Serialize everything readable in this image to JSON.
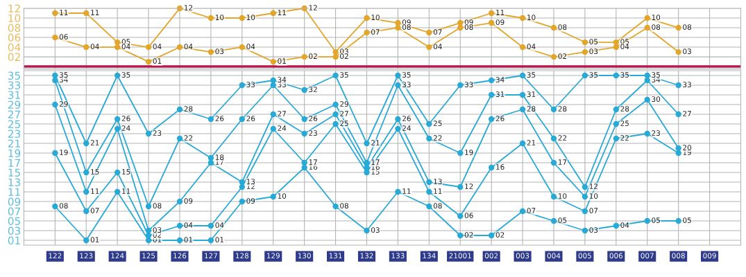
{
  "chart_data": [
    {
      "type": "line",
      "categories": [
        "122",
        "123",
        "124",
        "125",
        "126",
        "127",
        "128",
        "129",
        "130",
        "131",
        "132",
        "133",
        "134",
        "21001",
        "002",
        "003",
        "004",
        "005",
        "006",
        "007",
        "008",
        "009"
      ],
      "tick_labels": "y",
      "ylim": [
        -0.5,
        12
      ],
      "yticks": [
        {
          "value": 2,
          "label": "02"
        },
        {
          "value": 4,
          "label": "04"
        },
        {
          "value": 6,
          "label": "06"
        },
        {
          "value": 8,
          "label": "08"
        },
        10,
        12
      ],
      "grid": true,
      "marker": "circle",
      "line_style": "solid",
      "ref_lines": [
        {
          "axis": "y",
          "value": 0,
          "color": "#b5194c"
        }
      ],
      "series": [
        {
          "color": "#e2a62c",
          "values": [
            11,
            11,
            5,
            4,
            12,
            10,
            10,
            11,
            12,
            3,
            10,
            9,
            7,
            9,
            11,
            10,
            8,
            5,
            5,
            10,
            8,
            null
          ],
          "value_labels": [
            "11",
            "11",
            "05",
            "04",
            "12",
            "10",
            "10",
            "11",
            "12",
            "03",
            "10",
            "09",
            "07",
            "09",
            "11",
            "10",
            "08",
            "05",
            "05",
            "10",
            "08",
            null
          ]
        },
        {
          "color": "#e2a62c",
          "values": [
            6,
            4,
            4,
            1,
            4,
            3,
            4,
            1,
            2,
            2,
            7,
            8,
            4,
            8,
            9,
            4,
            2,
            3,
            4,
            8,
            3,
            null
          ],
          "value_labels": [
            "06",
            "04",
            "04",
            "01",
            "04",
            "03",
            "04",
            "01",
            "02",
            "02",
            "07",
            "08",
            "04",
            "08",
            "09",
            "04",
            "02",
            "03",
            "04",
            "08",
            "03",
            null
          ]
        }
      ]
    },
    {
      "type": "line",
      "categories": [
        "122",
        "123",
        "124",
        "125",
        "126",
        "127",
        "128",
        "129",
        "130",
        "131",
        "132",
        "133",
        "134",
        "21001",
        "002",
        "003",
        "004",
        "005",
        "006",
        "007",
        "008",
        "009"
      ],
      "ylim": [
        0,
        36
      ],
      "yticks": [
        {
          "value": 1,
          "label": "01"
        },
        {
          "value": 3,
          "label": "03"
        },
        {
          "value": 5,
          "label": "05"
        },
        {
          "value": 7,
          "label": "07"
        },
        {
          "value": 9,
          "label": "09"
        },
        11,
        13,
        15,
        17,
        19,
        21,
        23,
        25,
        27,
        29,
        31,
        33,
        35
      ],
      "grid": true,
      "marker": "circle",
      "line_style": "solid",
      "series": [
        {
          "color": "#29a9d6",
          "values": [
            8,
            1,
            11,
            1,
            1,
            1,
            9,
            10,
            16,
            8,
            3,
            11,
            8,
            2,
            2,
            7,
            5,
            3,
            4,
            5,
            5,
            null
          ],
          "value_labels": [
            "08",
            "01",
            "11",
            "01",
            "01",
            "01",
            "09",
            "10",
            "16",
            "08",
            "03",
            "11",
            "08",
            "02",
            "02",
            "07",
            "05",
            "03",
            "04",
            "05",
            "05",
            null
          ]
        },
        {
          "color": "#29a9d6",
          "values": [
            19,
            7,
            15,
            2,
            4,
            4,
            12,
            24,
            17,
            25,
            15,
            24,
            11,
            6,
            16,
            21,
            10,
            7,
            22,
            23,
            19,
            null
          ],
          "value_labels": [
            "19",
            "07",
            "15",
            "02",
            "04",
            "04",
            "12",
            "24",
            "17",
            "25",
            "15",
            "24",
            "11",
            "06",
            "16",
            "21",
            "10",
            "07",
            "22",
            "23",
            "19",
            null
          ]
        },
        {
          "color": "#29a9d6",
          "values": [
            29,
            11,
            24,
            3,
            9,
            17,
            13,
            27,
            23,
            27,
            16,
            26,
            13,
            12,
            26,
            28,
            17,
            10,
            25,
            30,
            20,
            null
          ],
          "value_labels": [
            "29",
            "11",
            "24",
            "03",
            "09",
            "17",
            "13",
            "27",
            "23",
            "27",
            "16",
            "26",
            "13",
            "12",
            "26",
            "28",
            "17",
            "10",
            "25",
            "30",
            "20",
            null
          ]
        },
        {
          "color": "#29a9d6",
          "values": [
            34,
            15,
            26,
            8,
            22,
            18,
            26,
            33,
            26,
            29,
            17,
            33,
            22,
            19,
            31,
            31,
            22,
            12,
            28,
            34,
            27,
            null
          ],
          "value_labels": [
            "34",
            "15",
            "26",
            "08",
            "22",
            "18",
            "26",
            "33",
            "26",
            "29",
            "17",
            "33",
            "22",
            "19",
            "31",
            "31",
            "22",
            "12",
            "28",
            "34",
            "27",
            null
          ]
        },
        {
          "color": "#29a9d6",
          "values": [
            35,
            21,
            35,
            23,
            28,
            26,
            33,
            34,
            32,
            35,
            21,
            35,
            25,
            33,
            34,
            35,
            28,
            35,
            35,
            35,
            33,
            null
          ],
          "value_labels": [
            "35",
            "21",
            "35",
            "23",
            "28",
            "26",
            "33",
            "34",
            "32",
            "35",
            "21",
            "35",
            "25",
            "33",
            "34",
            "35",
            "28",
            "35",
            "35",
            "35",
            "33",
            null
          ]
        }
      ]
    }
  ]
}
